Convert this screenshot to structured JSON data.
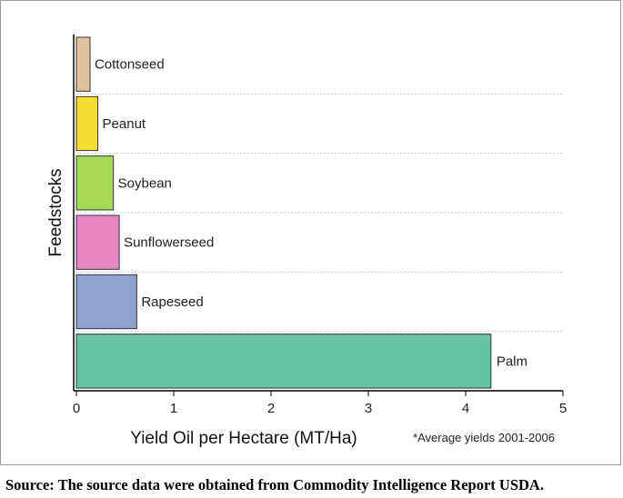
{
  "chart_data": {
    "type": "bar",
    "orientation": "horizontal",
    "categories": [
      "Cottonseed",
      "Peanut",
      "Soybean",
      "Sunflowerseed",
      "Rapeseed",
      "Palm"
    ],
    "values": [
      0.14,
      0.22,
      0.38,
      0.44,
      0.62,
      4.26
    ],
    "colors": [
      "#dfc29b",
      "#f7dc34",
      "#a6d858",
      "#e886c5",
      "#8fa3d3",
      "#67c3a6"
    ],
    "xlabel": "Yield Oil per Hectare (MT/Ha)",
    "ylabel": "Feedstocks",
    "xlim": [
      0,
      5
    ],
    "xticks": [
      "0",
      "1",
      "2",
      "3",
      "4",
      "5"
    ],
    "grid": "dotted horizontal separators",
    "footnote": "*Average yields 2001-2006"
  },
  "caption": "Source: The source data were obtained from Commodity Intelligence Report USDA."
}
